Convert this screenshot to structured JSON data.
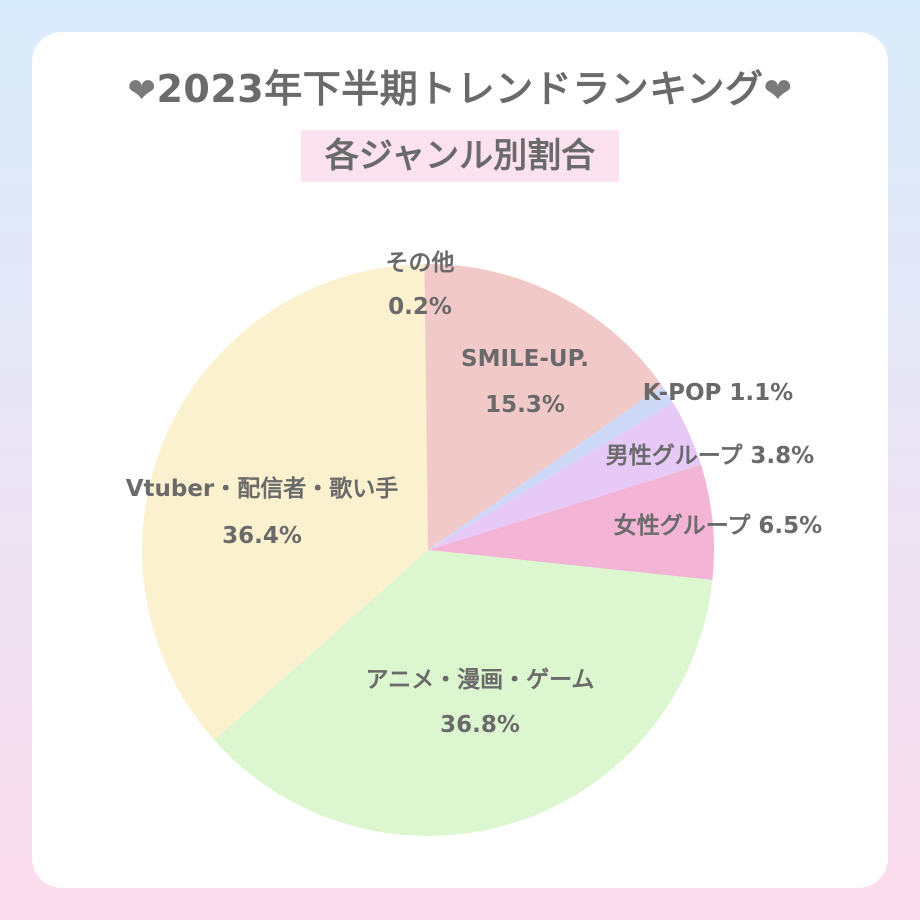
{
  "header": {
    "heart": "❤",
    "title": "2023年下半期トレンドランキング",
    "subtitle": "各ジャンル別割合"
  },
  "chart_data": {
    "type": "pie",
    "title": "2023年下半期トレンドランキング",
    "subtitle": "各ジャンル別割合",
    "unit": "%",
    "slices": [
      {
        "name": "SMILE-UP.",
        "value": 15.3,
        "label": "15.3%",
        "color": "#f1c9c9"
      },
      {
        "name": "K-POP",
        "value": 1.1,
        "label": "1.1%",
        "color": "#cdd9f7"
      },
      {
        "name": "男性グループ",
        "value": 3.8,
        "label": "3.8%",
        "color": "#e6c9f7"
      },
      {
        "name": "女性グループ",
        "value": 6.5,
        "label": "6.5%",
        "color": "#f4b4d6"
      },
      {
        "name": "アニメ・漫画・ゲーム",
        "value": 36.8,
        "label": "36.8%",
        "color": "#dcf7cf"
      },
      {
        "name": "Vtuber・配信者・歌い手",
        "value": 36.4,
        "label": "36.4%",
        "color": "#fcf1cf"
      },
      {
        "name": "その他",
        "value": 0.2,
        "label": "0.2%",
        "color": "#f1c9c9"
      }
    ]
  }
}
